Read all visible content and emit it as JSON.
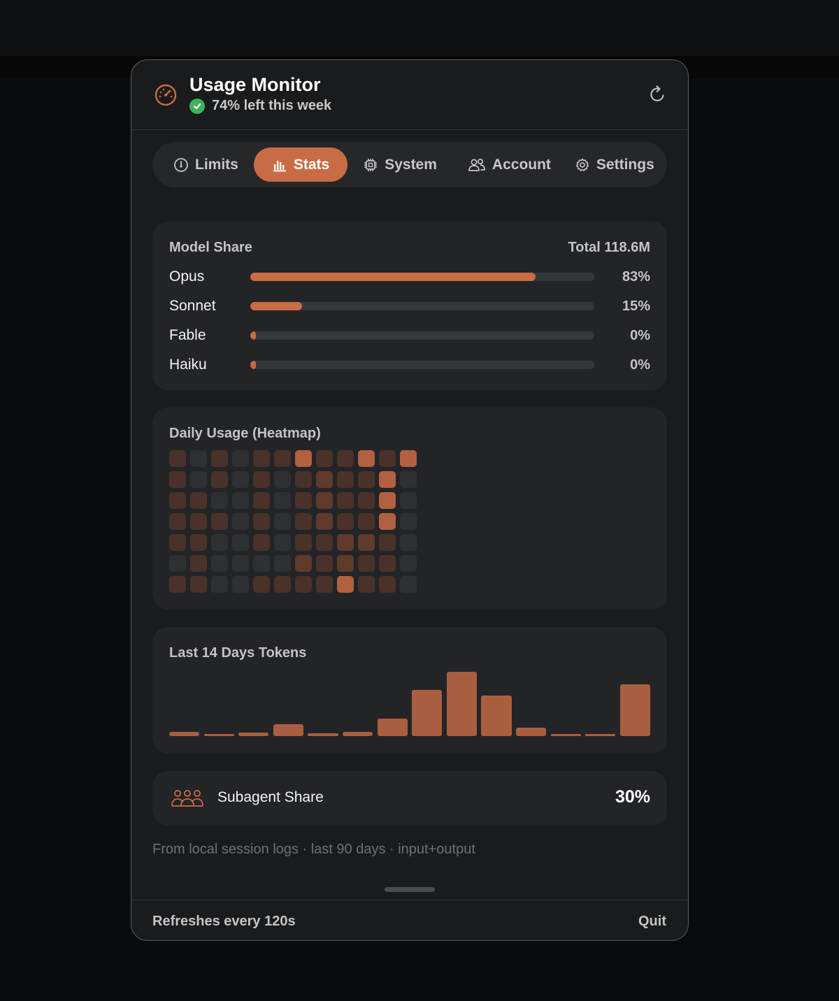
{
  "app": {
    "title": "Usage Monitor",
    "status_text": "74% left this week",
    "accent": "#c96c45",
    "status_color": "#3fb25a"
  },
  "header_icons": {
    "app": "speedometer-icon",
    "refresh": "refresh-icon",
    "status": "check-circle-icon"
  },
  "tabs": [
    {
      "label": "Limits",
      "icon": "gauge-icon",
      "active": false
    },
    {
      "label": "Stats",
      "icon": "bar-chart-icon",
      "active": true
    },
    {
      "label": "System",
      "icon": "cpu-chip-icon",
      "active": false
    },
    {
      "label": "Account",
      "icon": "users-icon",
      "active": false
    },
    {
      "label": "Settings",
      "icon": "gear-icon",
      "active": false
    }
  ],
  "model_share": {
    "title": "Model Share",
    "total": "Total 118.6M",
    "rows": [
      {
        "label": "Opus",
        "percent_text": "83%",
        "value": 83
      },
      {
        "label": "Sonnet",
        "percent_text": "15%",
        "value": 15
      },
      {
        "label": "Fable",
        "percent_text": "0%",
        "value": 0
      },
      {
        "label": "Haiku",
        "percent_text": "0%",
        "value": 0
      }
    ]
  },
  "heatmap": {
    "title": "Daily Usage (Heatmap)",
    "rows": 7,
    "columns": 12,
    "levels_by_column": [
      [
        2,
        2,
        2,
        2,
        2,
        1,
        2
      ],
      [
        1,
        1,
        2,
        2,
        2,
        2,
        2
      ],
      [
        2,
        2,
        1,
        2,
        1,
        1,
        1
      ],
      [
        1,
        1,
        1,
        1,
        1,
        1,
        1
      ],
      [
        2,
        2,
        2,
        2,
        2,
        1,
        2
      ],
      [
        2,
        1,
        1,
        1,
        1,
        1,
        2
      ],
      [
        4,
        2,
        2,
        2,
        2,
        3,
        2
      ],
      [
        2,
        3,
        3,
        3,
        2,
        2,
        2
      ],
      [
        2,
        2,
        2,
        2,
        3,
        3,
        4
      ],
      [
        4,
        2,
        2,
        2,
        3,
        2,
        2
      ],
      [
        2,
        4,
        4,
        4,
        2,
        2,
        2
      ],
      [
        4,
        1,
        1,
        1,
        1,
        1,
        1
      ]
    ],
    "level_colors": [
      "#2d2e31",
      "#2f3033",
      "#4a3129",
      "#603a2b",
      "#b2603f"
    ]
  },
  "tokens_chart": {
    "title": "Last 14 Days Tokens",
    "chart_data": {
      "type": "bar",
      "categories": [
        "",
        "",
        "",
        "",
        "",
        "",
        "",
        "",
        "",
        "",
        "",
        "",
        "",
        ""
      ],
      "values": [
        6,
        3,
        5,
        18,
        4,
        6,
        27,
        72,
        100,
        63,
        13,
        3,
        3,
        80
      ],
      "ylim": [
        0,
        100
      ]
    }
  },
  "subagent": {
    "label": "Subagent Share",
    "value": "30%",
    "icon": "group-icon"
  },
  "footnote": "From local session logs · last 90 days · input+output",
  "footer": {
    "refresh_text": "Refreshes every 120s",
    "quit_label": "Quit"
  }
}
